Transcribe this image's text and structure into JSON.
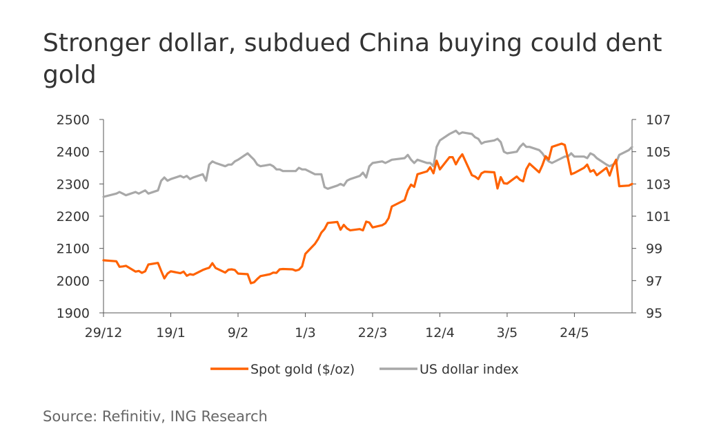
{
  "title": "Stronger dollar, subdued China buying could dent gold",
  "source": "Source: Refinitiv, ING Research",
  "colors": {
    "gold": "#FF6200",
    "usd": "#A8A8A8",
    "axis": "#555555",
    "text": "#333333"
  },
  "chart_data": {
    "type": "line",
    "title": "Stronger dollar, subdued China buying could dent gold",
    "x_tick_labels": [
      "29/12",
      "19/1",
      "9/2",
      "1/3",
      "22/3",
      "12/4",
      "3/5",
      "24/5"
    ],
    "x_tick_dates": [
      "2023-12-29",
      "2024-01-19",
      "2024-02-09",
      "2024-03-01",
      "2024-03-22",
      "2024-04-12",
      "2024-05-03",
      "2024-05-24"
    ],
    "x_range": [
      "2023-12-29",
      "2024-06-11"
    ],
    "left_axis": {
      "min": 1900,
      "max": 2500,
      "ticks": [
        1900,
        2000,
        2100,
        2200,
        2300,
        2400,
        2500
      ]
    },
    "right_axis": {
      "min": 95,
      "max": 107,
      "ticks": [
        95,
        97,
        99,
        101,
        103,
        105,
        107
      ]
    },
    "legend_position": "bottom",
    "grid": false,
    "series": [
      {
        "name": "Spot gold ($/oz)",
        "axis": "left",
        "color": "#FF6200",
        "x": [
          "2023-12-29",
          "2024-01-02",
          "2024-01-03",
          "2024-01-04",
          "2024-01-05",
          "2024-01-08",
          "2024-01-09",
          "2024-01-10",
          "2024-01-11",
          "2024-01-12",
          "2024-01-15",
          "2024-01-16",
          "2024-01-17",
          "2024-01-18",
          "2024-01-19",
          "2024-01-22",
          "2024-01-23",
          "2024-01-24",
          "2024-01-25",
          "2024-01-26",
          "2024-01-29",
          "2024-01-30",
          "2024-01-31",
          "2024-02-01",
          "2024-02-02",
          "2024-02-05",
          "2024-02-06",
          "2024-02-07",
          "2024-02-08",
          "2024-02-09",
          "2024-02-12",
          "2024-02-13",
          "2024-02-14",
          "2024-02-15",
          "2024-02-16",
          "2024-02-19",
          "2024-02-20",
          "2024-02-21",
          "2024-02-22",
          "2024-02-23",
          "2024-02-26",
          "2024-02-27",
          "2024-02-28",
          "2024-02-29",
          "2024-03-01",
          "2024-03-04",
          "2024-03-05",
          "2024-03-06",
          "2024-03-07",
          "2024-03-08",
          "2024-03-11",
          "2024-03-12",
          "2024-03-13",
          "2024-03-14",
          "2024-03-15",
          "2024-03-18",
          "2024-03-19",
          "2024-03-20",
          "2024-03-21",
          "2024-03-22",
          "2024-03-25",
          "2024-03-26",
          "2024-03-27",
          "2024-03-28",
          "2024-04-01",
          "2024-04-02",
          "2024-04-03",
          "2024-04-04",
          "2024-04-05",
          "2024-04-08",
          "2024-04-09",
          "2024-04-10",
          "2024-04-11",
          "2024-04-12",
          "2024-04-15",
          "2024-04-16",
          "2024-04-17",
          "2024-04-18",
          "2024-04-19",
          "2024-04-22",
          "2024-04-23",
          "2024-04-24",
          "2024-04-25",
          "2024-04-26",
          "2024-04-29",
          "2024-04-30",
          "2024-05-01",
          "2024-05-02",
          "2024-05-03",
          "2024-05-06",
          "2024-05-07",
          "2024-05-08",
          "2024-05-09",
          "2024-05-10",
          "2024-05-13",
          "2024-05-14",
          "2024-05-15",
          "2024-05-16",
          "2024-05-17",
          "2024-05-20",
          "2024-05-21",
          "2024-05-22",
          "2024-05-23",
          "2024-05-24",
          "2024-05-27",
          "2024-05-28",
          "2024-05-29",
          "2024-05-30",
          "2024-05-31",
          "2024-06-03",
          "2024-06-04",
          "2024-06-05",
          "2024-06-06",
          "2024-06-07",
          "2024-06-10",
          "2024-06-11"
        ],
        "values": [
          2063,
          2060,
          2043,
          2044,
          2046,
          2028,
          2030,
          2024,
          2029,
          2050,
          2055,
          2030,
          2007,
          2022,
          2029,
          2023,
          2028,
          2015,
          2020,
          2018,
          2033,
          2037,
          2040,
          2054,
          2039,
          2025,
          2034,
          2035,
          2033,
          2022,
          2020,
          1992,
          1995,
          2005,
          2014,
          2020,
          2025,
          2024,
          2035,
          2036,
          2035,
          2031,
          2034,
          2044,
          2083,
          2114,
          2129,
          2149,
          2160,
          2179,
          2182,
          2158,
          2173,
          2162,
          2156,
          2160,
          2156,
          2183,
          2180,
          2165,
          2172,
          2178,
          2194,
          2230,
          2250,
          2280,
          2298,
          2291,
          2330,
          2339,
          2352,
          2333,
          2372,
          2345,
          2383,
          2383,
          2361,
          2379,
          2392,
          2327,
          2323,
          2315,
          2333,
          2338,
          2336,
          2286,
          2321,
          2302,
          2301,
          2323,
          2313,
          2308,
          2346,
          2363,
          2336,
          2358,
          2386,
          2376,
          2415,
          2425,
          2421,
          2378,
          2330,
          2334,
          2350,
          2360,
          2338,
          2343,
          2327,
          2350,
          2326,
          2355,
          2375,
          2293,
          2295,
          2300
        ]
      },
      {
        "name": "US dollar index",
        "axis": "right",
        "color": "#A8A8A8",
        "x": [
          "2023-12-29",
          "2024-01-02",
          "2024-01-03",
          "2024-01-04",
          "2024-01-05",
          "2024-01-08",
          "2024-01-09",
          "2024-01-10",
          "2024-01-11",
          "2024-01-12",
          "2024-01-15",
          "2024-01-16",
          "2024-01-17",
          "2024-01-18",
          "2024-01-19",
          "2024-01-22",
          "2024-01-23",
          "2024-01-24",
          "2024-01-25",
          "2024-01-26",
          "2024-01-29",
          "2024-01-30",
          "2024-01-31",
          "2024-02-01",
          "2024-02-02",
          "2024-02-05",
          "2024-02-06",
          "2024-02-07",
          "2024-02-08",
          "2024-02-09",
          "2024-02-12",
          "2024-02-13",
          "2024-02-14",
          "2024-02-15",
          "2024-02-16",
          "2024-02-19",
          "2024-02-20",
          "2024-02-21",
          "2024-02-22",
          "2024-02-23",
          "2024-02-26",
          "2024-02-27",
          "2024-02-28",
          "2024-02-29",
          "2024-03-01",
          "2024-03-04",
          "2024-03-05",
          "2024-03-06",
          "2024-03-07",
          "2024-03-08",
          "2024-03-11",
          "2024-03-12",
          "2024-03-13",
          "2024-03-14",
          "2024-03-15",
          "2024-03-18",
          "2024-03-19",
          "2024-03-20",
          "2024-03-21",
          "2024-03-22",
          "2024-03-25",
          "2024-03-26",
          "2024-03-27",
          "2024-03-28",
          "2024-04-01",
          "2024-04-02",
          "2024-04-03",
          "2024-04-04",
          "2024-04-05",
          "2024-04-08",
          "2024-04-09",
          "2024-04-10",
          "2024-04-11",
          "2024-04-12",
          "2024-04-15",
          "2024-04-16",
          "2024-04-17",
          "2024-04-18",
          "2024-04-19",
          "2024-04-22",
          "2024-04-23",
          "2024-04-24",
          "2024-04-25",
          "2024-04-26",
          "2024-04-29",
          "2024-04-30",
          "2024-05-01",
          "2024-05-02",
          "2024-05-03",
          "2024-05-06",
          "2024-05-07",
          "2024-05-08",
          "2024-05-09",
          "2024-05-10",
          "2024-05-13",
          "2024-05-14",
          "2024-05-15",
          "2024-05-16",
          "2024-05-17",
          "2024-05-20",
          "2024-05-21",
          "2024-05-22",
          "2024-05-23",
          "2024-05-24",
          "2024-05-27",
          "2024-05-28",
          "2024-05-29",
          "2024-05-30",
          "2024-05-31",
          "2024-06-03",
          "2024-06-04",
          "2024-06-05",
          "2024-06-06",
          "2024-06-07",
          "2024-06-10",
          "2024-06-11"
        ],
        "values": [
          102.2,
          102.4,
          102.5,
          102.4,
          102.3,
          102.5,
          102.4,
          102.5,
          102.6,
          102.4,
          102.6,
          103.2,
          103.4,
          103.2,
          103.3,
          103.5,
          103.4,
          103.5,
          103.3,
          103.4,
          103.6,
          103.2,
          104.2,
          104.4,
          104.3,
          104.1,
          104.2,
          104.2,
          104.4,
          104.5,
          104.9,
          104.7,
          104.5,
          104.2,
          104.1,
          104.2,
          104.1,
          103.9,
          103.9,
          103.8,
          103.8,
          103.8,
          104.0,
          103.9,
          103.9,
          103.6,
          103.6,
          103.6,
          102.8,
          102.7,
          102.9,
          103.0,
          102.9,
          103.2,
          103.3,
          103.5,
          103.7,
          103.4,
          104.1,
          104.3,
          104.4,
          104.3,
          104.4,
          104.5,
          104.6,
          104.8,
          104.5,
          104.3,
          104.5,
          104.3,
          104.3,
          104.1,
          105.3,
          105.7,
          106.1,
          106.2,
          106.3,
          106.1,
          106.2,
          106.1,
          105.9,
          105.8,
          105.5,
          105.6,
          105.7,
          105.8,
          105.6,
          105.0,
          104.9,
          105.0,
          105.3,
          105.5,
          105.3,
          105.3,
          105.1,
          104.9,
          104.6,
          104.4,
          104.3,
          104.6,
          104.7,
          104.7,
          104.9,
          104.7,
          104.7,
          104.6,
          104.9,
          104.8,
          104.6,
          104.2,
          104.1,
          104.2,
          104.3,
          104.8,
          105.1,
          105.3
        ]
      }
    ]
  }
}
